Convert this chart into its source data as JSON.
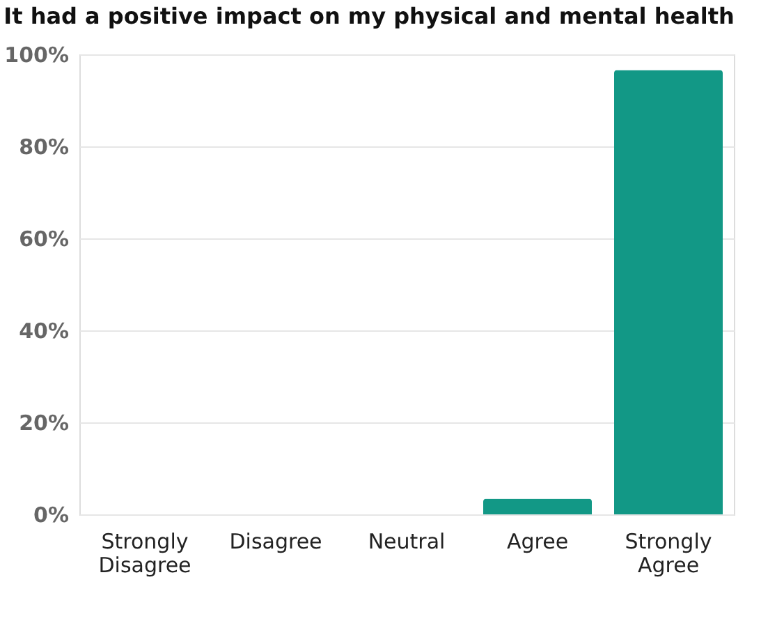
{
  "chart_data": {
    "type": "bar",
    "title": "It had a positive impact on my physical and mental health",
    "categories": [
      "Strongly Disagree",
      "Disagree",
      "Neutral",
      "Agree",
      "Strongly Agree"
    ],
    "values": [
      0,
      0,
      0,
      3.4,
      96.6
    ],
    "color": "#129886",
    "ylim": [
      0,
      100
    ],
    "yticks": [
      {
        "value": 0,
        "label": "0%"
      },
      {
        "value": 20,
        "label": "20%"
      },
      {
        "value": 40,
        "label": "40%"
      },
      {
        "value": 60,
        "label": "60%"
      },
      {
        "value": 80,
        "label": "80%"
      },
      {
        "value": 100,
        "label": "100%"
      }
    ],
    "grid": "y"
  }
}
